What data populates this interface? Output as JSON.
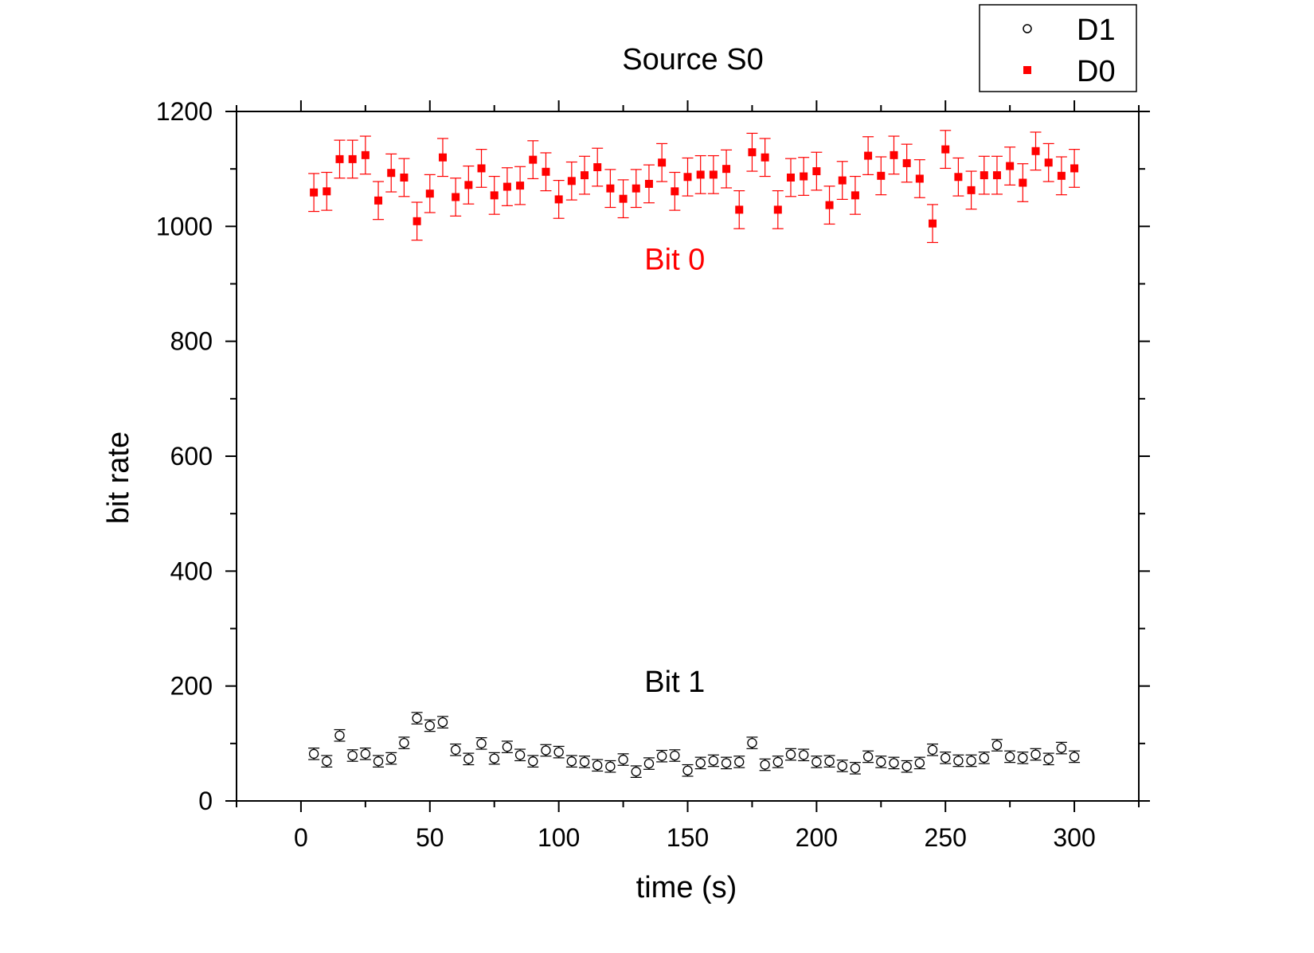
{
  "chart_data": {
    "type": "scatter",
    "title": "Source S0",
    "xlabel": "time (s)",
    "ylabel": "bit rate",
    "xlim": [
      -25,
      325
    ],
    "ylim": [
      0,
      1200
    ],
    "x_ticks": [
      "0",
      "50",
      "100",
      "150",
      "200",
      "250",
      "300"
    ],
    "y_ticks": [
      "0",
      "200",
      "400",
      "600",
      "800",
      "1000",
      "1200"
    ],
    "grid": false,
    "legend_position": "top-right",
    "annotations": [
      {
        "text": "Bit 0",
        "x": 145,
        "y": 925,
        "color": "#ff0000"
      },
      {
        "text": "Bit 1",
        "x": 145,
        "y": 190,
        "color": "#000000"
      }
    ],
    "x": [
      5,
      10,
      15,
      20,
      25,
      30,
      35,
      40,
      45,
      50,
      55,
      60,
      65,
      70,
      75,
      80,
      85,
      90,
      95,
      100,
      105,
      110,
      115,
      120,
      125,
      130,
      135,
      140,
      145,
      150,
      155,
      160,
      165,
      170,
      175,
      180,
      185,
      190,
      195,
      200,
      205,
      210,
      215,
      220,
      225,
      230,
      235,
      240,
      245,
      250,
      255,
      260,
      265,
      270,
      275,
      280,
      285,
      290,
      295,
      300
    ],
    "series": [
      {
        "name": "D1",
        "marker": "open-circle",
        "color": "#000000",
        "values": [
          82,
          69,
          114,
          79,
          82,
          69,
          74,
          101,
          144,
          131,
          137,
          89,
          73,
          100,
          74,
          94,
          80,
          69,
          88,
          85,
          69,
          68,
          62,
          60,
          72,
          51,
          65,
          78,
          79,
          53,
          66,
          70,
          66,
          68,
          101,
          63,
          68,
          81,
          80,
          68,
          69,
          61,
          57,
          77,
          68,
          66,
          60,
          66,
          89,
          75,
          70,
          70,
          75,
          97,
          77,
          75,
          81,
          73,
          92,
          77
        ],
        "errors": [
          10,
          10,
          10,
          10,
          10,
          10,
          10,
          10,
          10,
          10,
          10,
          10,
          10,
          10,
          10,
          10,
          10,
          10,
          10,
          10,
          10,
          10,
          10,
          10,
          10,
          10,
          10,
          10,
          10,
          10,
          10,
          10,
          10,
          10,
          10,
          10,
          10,
          10,
          10,
          10,
          10,
          10,
          10,
          10,
          10,
          10,
          10,
          10,
          10,
          10,
          10,
          10,
          10,
          10,
          10,
          10,
          10,
          10,
          10,
          10
        ]
      },
      {
        "name": "D0",
        "marker": "filled-square",
        "color": "#ff0000",
        "values": [
          1059,
          1061,
          1117,
          1117,
          1124,
          1045,
          1093,
          1085,
          1009,
          1057,
          1120,
          1051,
          1072,
          1101,
          1054,
          1069,
          1071,
          1116,
          1095,
          1047,
          1079,
          1089,
          1103,
          1066,
          1048,
          1066,
          1074,
          1111,
          1061,
          1086,
          1090,
          1090,
          1100,
          1029,
          1129,
          1120,
          1029,
          1085,
          1087,
          1096,
          1037,
          1080,
          1054,
          1123,
          1088,
          1124,
          1110,
          1083,
          1005,
          1134,
          1086,
          1063,
          1089,
          1089,
          1105,
          1076,
          1131,
          1111,
          1088,
          1101
        ],
        "errors": [
          33,
          33,
          33,
          33,
          33,
          33,
          33,
          33,
          33,
          33,
          33,
          33,
          33,
          33,
          33,
          33,
          33,
          33,
          33,
          33,
          33,
          33,
          33,
          33,
          33,
          33,
          33,
          33,
          33,
          33,
          33,
          33,
          33,
          33,
          33,
          33,
          33,
          33,
          33,
          33,
          33,
          33,
          33,
          33,
          33,
          33,
          33,
          33,
          33,
          33,
          33,
          33,
          33,
          33,
          33,
          33,
          33,
          33,
          33,
          33
        ]
      }
    ]
  }
}
